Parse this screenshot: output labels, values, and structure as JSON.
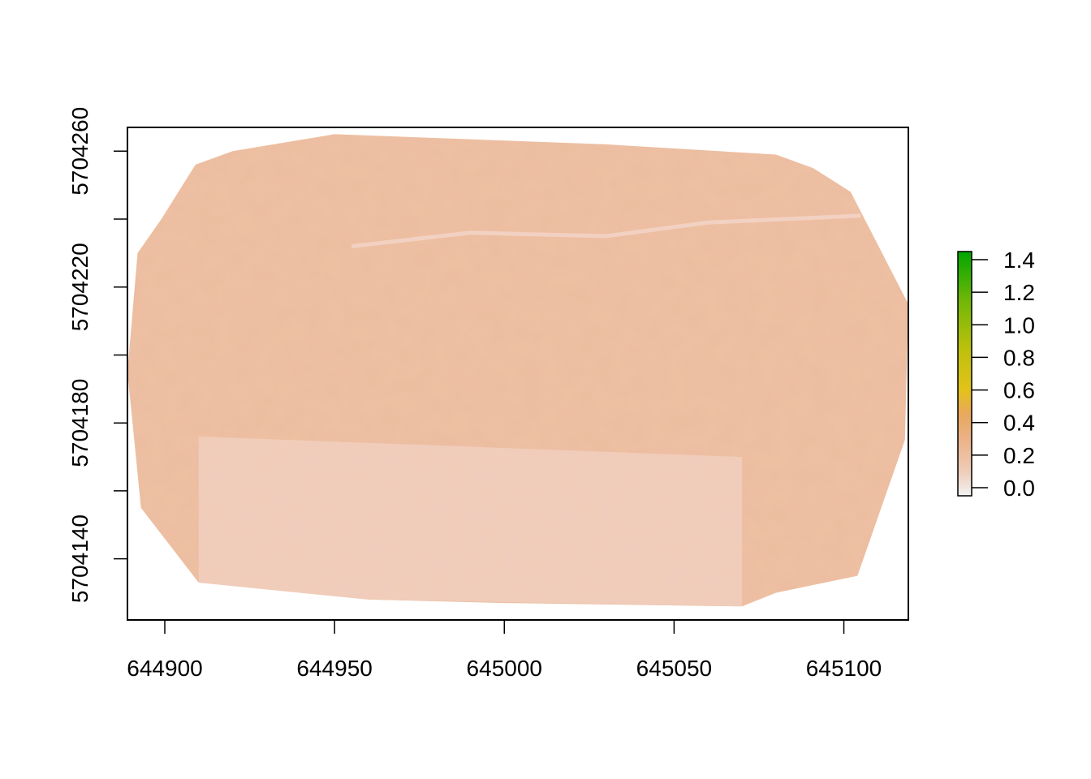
{
  "chart_data": {
    "type": "heatmap",
    "title": "",
    "xlabel": "",
    "ylabel": "",
    "xlim": [
      644889,
      645119
    ],
    "ylim": [
      5704122,
      5704267
    ],
    "x_ticks": [
      "644900",
      "644950",
      "645000",
      "645050",
      "645100"
    ],
    "x_tick_values": [
      644900,
      644950,
      645000,
      645050,
      645100
    ],
    "y_ticks": [
      "5704140",
      "5704180",
      "5704220",
      "5704260"
    ],
    "y_tick_values": [
      5704140,
      5704180,
      5704220,
      5704260
    ],
    "y_minor_tick_values": [
      5704160,
      5704200,
      5704240
    ],
    "grid": false,
    "legend": {
      "placement": "right",
      "min": -0.05,
      "max": 1.45,
      "ticks": [
        "0.0",
        "0.2",
        "0.4",
        "0.6",
        "0.8",
        "1.0",
        "1.2",
        "1.4"
      ],
      "tick_values": [
        0.0,
        0.2,
        0.4,
        0.6,
        0.8,
        1.0,
        1.2,
        1.4
      ],
      "colorscale": [
        [
          -0.05,
          "#f2f2f2"
        ],
        [
          0.1,
          "#efccb9"
        ],
        [
          0.3,
          "#ebb287"
        ],
        [
          0.45,
          "#e8a85e"
        ],
        [
          0.6,
          "#e3c21a"
        ],
        [
          0.85,
          "#bdc10c"
        ],
        [
          1.15,
          "#70b708"
        ],
        [
          1.45,
          "#00a600"
        ]
      ]
    },
    "raster_extent_outline": [
      [
        644899,
        5704240
      ],
      [
        644909,
        5704256
      ],
      [
        644920,
        5704260
      ],
      [
        644950,
        5704265
      ],
      [
        645030,
        5704262
      ],
      [
        645080,
        5704259
      ],
      [
        645091,
        5704255
      ],
      [
        645102,
        5704248
      ],
      [
        645119,
        5704215
      ],
      [
        645118,
        5704175
      ],
      [
        645104,
        5704135
      ],
      [
        645080,
        5704130
      ],
      [
        645070,
        5704126
      ],
      [
        645000,
        5704127
      ],
      [
        644960,
        5704128
      ],
      [
        644910,
        5704133
      ],
      [
        644893,
        5704155
      ],
      [
        644889,
        5704195
      ],
      [
        644892,
        5704230
      ]
    ],
    "mean_value": 0.2
  }
}
